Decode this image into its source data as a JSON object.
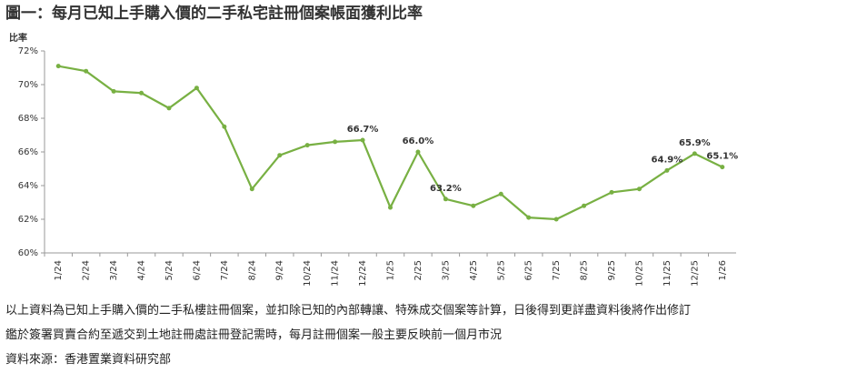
{
  "chart_data": {
    "type": "line",
    "title": "圖一：每月已知上手購入價的二手私宅註冊個案帳面獲利比率",
    "y_label": "比率",
    "categories": [
      "1/24",
      "2/24",
      "3/24",
      "4/24",
      "5/24",
      "6/24",
      "7/24",
      "8/24",
      "9/24",
      "10/24",
      "11/24",
      "12/24",
      "1/25",
      "2/25",
      "3/25",
      "4/25",
      "5/25",
      "6/25",
      "7/25",
      "8/25",
      "9/25",
      "10/25",
      "11/25",
      "12/25",
      "1/26"
    ],
    "series": [
      {
        "color": "#78b043",
        "values": [
          71.1,
          70.8,
          69.6,
          69.5,
          68.6,
          69.8,
          67.5,
          63.8,
          65.8,
          66.4,
          66.6,
          66.7,
          62.7,
          66.0,
          63.2,
          62.8,
          63.5,
          62.1,
          62.0,
          62.8,
          63.6,
          63.8,
          64.9,
          65.9,
          65.1
        ],
        "value_labels": [
          null,
          null,
          null,
          null,
          null,
          null,
          null,
          null,
          null,
          null,
          null,
          "66.7%",
          null,
          "66.0%",
          "63.2%",
          null,
          null,
          null,
          null,
          null,
          null,
          null,
          "64.9%",
          "65.9%",
          "65.1%"
        ]
      }
    ],
    "ylim": [
      60,
      72
    ],
    "yticks": [
      {
        "value": 60,
        "label": "60%"
      },
      {
        "value": 62,
        "label": "62%"
      },
      {
        "value": 64,
        "label": "64%"
      },
      {
        "value": 66,
        "label": "66%"
      },
      {
        "value": 68,
        "label": "68%"
      },
      {
        "value": 70,
        "label": "70%"
      },
      {
        "value": 72,
        "label": "72%"
      }
    ],
    "grid": false,
    "notes": [
      "以上資料為已知上手購入價的二手私樓註冊個案，並扣除已知的內部轉讓、特殊成交個案等計算，日後得到更詳盡資料後將作出修訂",
      "鑑於簽署買賣合約至遞交到土地註冊處註冊登記需時，每月註冊個案一般主要反映前一個月市況",
      "資料來源：香港置業資料研究部"
    ]
  }
}
